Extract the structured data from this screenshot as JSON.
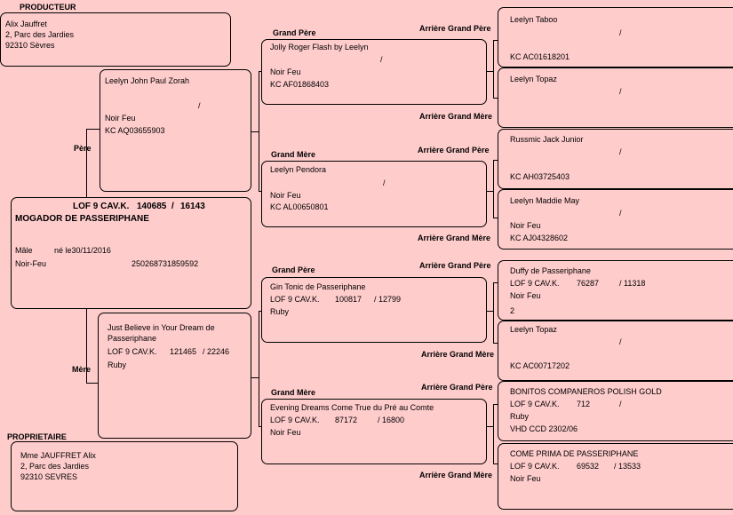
{
  "section_labels": {
    "producer": "PRODUCTEUR",
    "owner": "PROPRIETAIRE",
    "sire": "Père",
    "dam": "Mère",
    "grand_sire": "Grand Père",
    "grand_dam": "Grand Mère",
    "great_grand_sire": "Arrière Grand Père",
    "great_grand_dam": "Arrière Grand Mère"
  },
  "producer": {
    "name": "Alix Jauffret",
    "address": "2, Parc des Jardies",
    "city": "92310 Sèvres"
  },
  "owner": {
    "name": "Mme JAUFFRET Alix",
    "address": "2, Parc des Jardies",
    "city": "92310 SEVRES"
  },
  "subject": {
    "registry": "LOF 9 CAV.K.",
    "number": "140685",
    "slash": "/",
    "sub_number": "16143",
    "name": "MOGADOR DE PASSERIPHANE",
    "sex": "Mâle",
    "born": "né le30/11/2016",
    "color": "Noir-Feu",
    "chip": "250268731859592"
  },
  "sire": {
    "name": "Leelyn John Paul Zorah",
    "slash": "/",
    "color": "Noir Feu",
    "reg": "KC AQ03655903"
  },
  "dam": {
    "name_line1": "Just Believe in Your Dream de",
    "name_line2": "Passeriphane",
    "registry": "LOF 9 CAV.K.",
    "number": "121465",
    "sub": "/  22246",
    "color": "Ruby"
  },
  "grandparents": {
    "sire_sire": {
      "name": "Jolly Roger Flash by Leelyn",
      "slash": "/",
      "color": "Noir Feu",
      "reg": "KC AF01868403"
    },
    "sire_dam": {
      "name": "Leelyn Pendora",
      "slash": "/",
      "color": "Noir Feu",
      "reg": "KC AL00650801"
    },
    "dam_sire": {
      "name": "Gin Tonic de Passeriphane",
      "registry": "LOF 9 CAV.K.",
      "number": "100817",
      "sub": "/  12799",
      "color": "Ruby"
    },
    "dam_dam": {
      "name": "Evening Dreams Come True du Pré au Comte",
      "registry": "LOF 9 CAV.K.",
      "number": "87172",
      "sub": "/  16800",
      "color": "Noir Feu"
    }
  },
  "great_grandparents": {
    "g1": {
      "name": "Leelyn Taboo",
      "slash": "/",
      "reg": "KC AC01618201"
    },
    "g2": {
      "name": "Leelyn Topaz",
      "slash": "/"
    },
    "g3": {
      "name": "Russmic Jack Junior",
      "slash": "/",
      "reg": "KC AH03725403"
    },
    "g4": {
      "name": "Leelyn Maddie May",
      "slash": "/",
      "color": "Noir Feu",
      "reg": "KC AJ04328602"
    },
    "g5": {
      "name": "Duffy de Passeriphane",
      "registry": "LOF 9 CAV.K.",
      "number": "76287",
      "sub": "/  11318",
      "color": "Noir Feu",
      "extra": "2"
    },
    "g6": {
      "name": "Leelyn Topaz",
      "slash": "/",
      "reg": "KC AC00717202"
    },
    "g7": {
      "name": "BONITOS COMPANEROS POLISH GOLD",
      "registry": "LOF 9 CAV.K.",
      "number": "712",
      "slash": "/",
      "color": "Ruby",
      "reg": "VHD CCD 2302/06"
    },
    "g8": {
      "name": "COME PRIMA DE PASSERIPHANE",
      "registry": "LOF 9 CAV.K.",
      "number": "69532",
      "sub": "/  13533",
      "color": "Noir Feu"
    }
  }
}
